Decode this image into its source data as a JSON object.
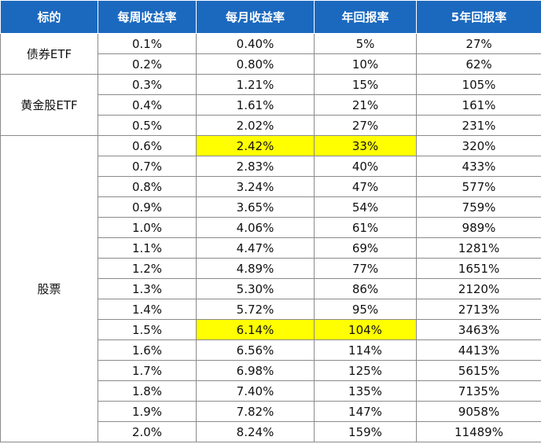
{
  "header": [
    "标的",
    "每周收益率",
    "每月收益率",
    "年回报率",
    "5年回报率"
  ],
  "colors": {
    "header_bg": "#1b69bf",
    "highlight": "#ffff00"
  },
  "groups": [
    {
      "name": "债券ETF",
      "rows": [
        {
          "weekly": "0.1%",
          "monthly": "0.40%",
          "annual": "5%",
          "five_year": "27%"
        },
        {
          "weekly": "0.2%",
          "monthly": "0.80%",
          "annual": "10%",
          "five_year": "62%"
        }
      ]
    },
    {
      "name": "黄金股ETF",
      "rows": [
        {
          "weekly": "0.3%",
          "monthly": "1.21%",
          "annual": "15%",
          "five_year": "105%"
        },
        {
          "weekly": "0.4%",
          "monthly": "1.61%",
          "annual": "21%",
          "five_year": "161%"
        },
        {
          "weekly": "0.5%",
          "monthly": "2.02%",
          "annual": "27%",
          "five_year": "231%"
        }
      ]
    },
    {
      "name": "股票",
      "rows": [
        {
          "weekly": "0.6%",
          "monthly": "2.42%",
          "annual": "33%",
          "five_year": "320%",
          "highlight": true
        },
        {
          "weekly": "0.7%",
          "monthly": "2.83%",
          "annual": "40%",
          "five_year": "433%"
        },
        {
          "weekly": "0.8%",
          "monthly": "3.24%",
          "annual": "47%",
          "five_year": "577%"
        },
        {
          "weekly": "0.9%",
          "monthly": "3.65%",
          "annual": "54%",
          "five_year": "759%"
        },
        {
          "weekly": "1.0%",
          "monthly": "4.06%",
          "annual": "61%",
          "five_year": "989%"
        },
        {
          "weekly": "1.1%",
          "monthly": "4.47%",
          "annual": "69%",
          "five_year": "1281%"
        },
        {
          "weekly": "1.2%",
          "monthly": "4.89%",
          "annual": "77%",
          "five_year": "1651%"
        },
        {
          "weekly": "1.3%",
          "monthly": "5.30%",
          "annual": "86%",
          "five_year": "2120%"
        },
        {
          "weekly": "1.4%",
          "monthly": "5.72%",
          "annual": "95%",
          "five_year": "2713%"
        },
        {
          "weekly": "1.5%",
          "monthly": "6.14%",
          "annual": "104%",
          "five_year": "3463%",
          "highlight": true
        },
        {
          "weekly": "1.6%",
          "monthly": "6.56%",
          "annual": "114%",
          "five_year": "4413%"
        },
        {
          "weekly": "1.7%",
          "monthly": "6.98%",
          "annual": "125%",
          "five_year": "5615%"
        },
        {
          "weekly": "1.8%",
          "monthly": "7.40%",
          "annual": "135%",
          "five_year": "7135%"
        },
        {
          "weekly": "1.9%",
          "monthly": "7.82%",
          "annual": "147%",
          "five_year": "9058%"
        },
        {
          "weekly": "2.0%",
          "monthly": "8.24%",
          "annual": "159%",
          "five_year": "11489%"
        }
      ]
    }
  ]
}
